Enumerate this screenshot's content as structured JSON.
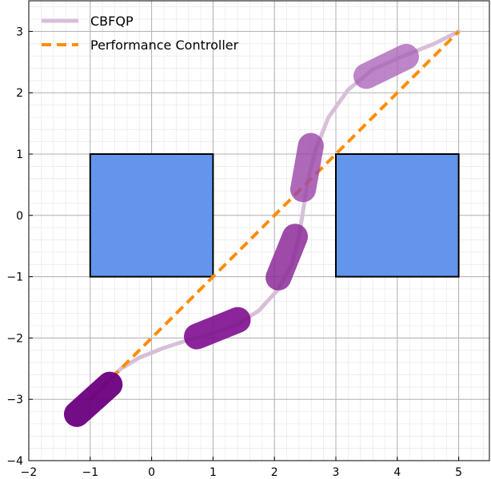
{
  "chart_data": {
    "type": "line",
    "title": "",
    "xlabel": "",
    "ylabel": "",
    "xlim": [
      -2,
      5.5
    ],
    "ylim": [
      -4,
      3.5
    ],
    "grid": true,
    "minor_grid": true,
    "legend_position": "top-left",
    "x_ticks": [
      -2,
      -1,
      0,
      1,
      2,
      3,
      4,
      5
    ],
    "y_ticks": [
      -4,
      -3,
      -2,
      -1,
      0,
      1,
      2,
      3
    ],
    "x_tick_labels": [
      "−2",
      "−1",
      "0",
      "1",
      "2",
      "3",
      "4",
      "5"
    ],
    "y_tick_labels": [
      "−4",
      "−3",
      "−2",
      "−1",
      "0",
      "1",
      "2",
      "3"
    ],
    "series": [
      {
        "name": "CBFQP",
        "color": "#d8bfd8",
        "style": "solid",
        "points": [
          [
            -0.95,
            -2.97
          ],
          [
            -0.8,
            -2.78
          ],
          [
            -0.5,
            -2.5
          ],
          [
            -0.2,
            -2.32
          ],
          [
            0.2,
            -2.16
          ],
          [
            0.6,
            -2.03
          ],
          [
            1.0,
            -1.92
          ],
          [
            1.4,
            -1.78
          ],
          [
            1.75,
            -1.55
          ],
          [
            2.05,
            -1.22
          ],
          [
            2.28,
            -0.8
          ],
          [
            2.4,
            -0.35
          ],
          [
            2.47,
            0.1
          ],
          [
            2.55,
            0.6
          ],
          [
            2.68,
            1.1
          ],
          [
            2.88,
            1.6
          ],
          [
            3.2,
            2.05
          ],
          [
            3.6,
            2.38
          ],
          [
            4.1,
            2.6
          ],
          [
            4.6,
            2.8
          ],
          [
            5.0,
            3.0
          ]
        ]
      },
      {
        "name": "Performance Controller",
        "color": "#ff8c00",
        "style": "dashed",
        "points": [
          [
            -1.0,
            -3.0
          ],
          [
            5.0,
            3.0
          ]
        ]
      }
    ],
    "obstacles": [
      {
        "x": [
          -1,
          1
        ],
        "y": [
          -1,
          1
        ],
        "color": "#6495ed"
      },
      {
        "x": [
          3,
          5
        ],
        "y": [
          -1,
          1
        ],
        "color": "#6495ed"
      }
    ],
    "robot_poses": [
      {
        "x": -0.95,
        "y": -3.0,
        "angle_deg": 42,
        "color": "#6a0080",
        "opacity": 0.95
      },
      {
        "x": 1.07,
        "y": -1.84,
        "angle_deg": 22,
        "color": "#7e0e8f",
        "opacity": 0.9
      },
      {
        "x": 2.2,
        "y": -0.68,
        "angle_deg": 68,
        "color": "#8c2a9a",
        "opacity": 0.85
      },
      {
        "x": 2.53,
        "y": 0.78,
        "angle_deg": 80,
        "color": "#9a45a8",
        "opacity": 0.8
      },
      {
        "x": 3.82,
        "y": 2.43,
        "angle_deg": 26,
        "color": "#a65db5",
        "opacity": 0.75
      }
    ]
  }
}
